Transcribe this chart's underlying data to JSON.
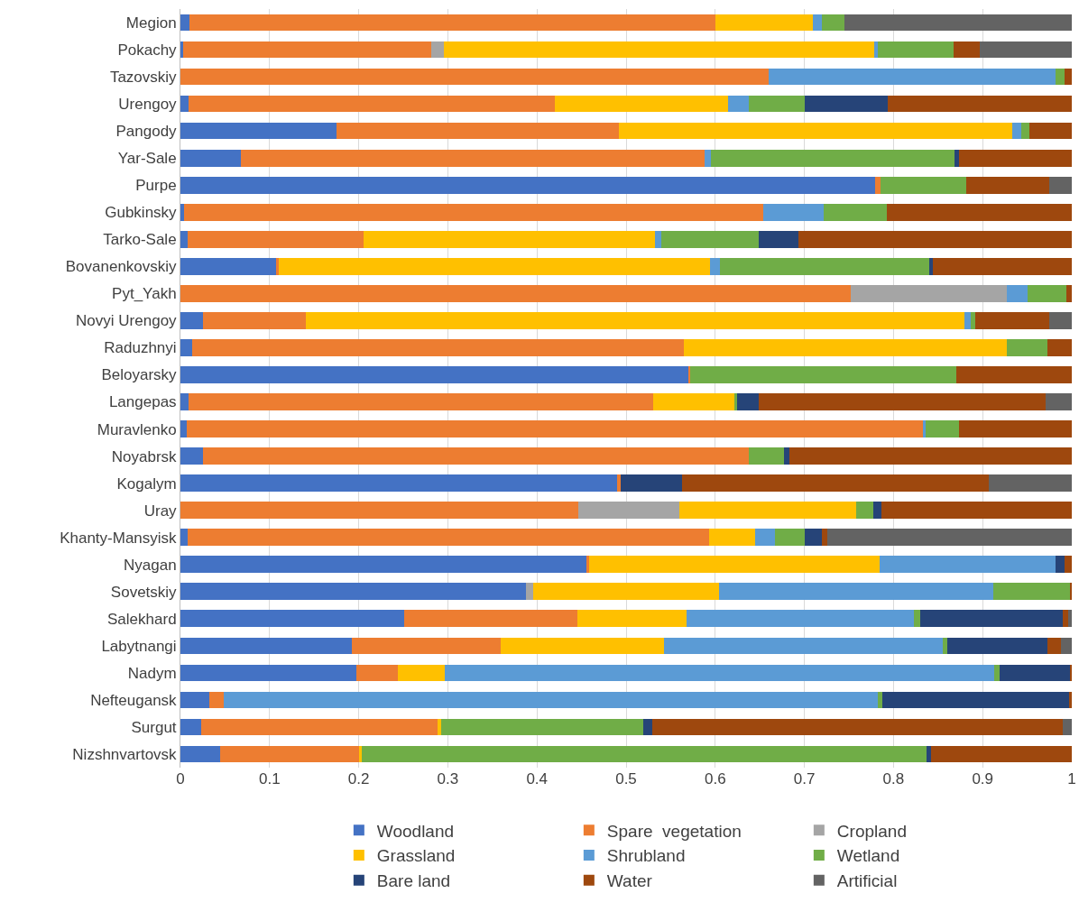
{
  "chart_data": {
    "type": "bar",
    "orientation": "horizontal",
    "stacked": true,
    "legend": "bottom",
    "grid": "x",
    "categories": [
      "Megion",
      "Pokachy",
      "Tazovskiy",
      "Urengoy",
      "Pangody",
      "Yar-Sale",
      "Purpe",
      "Gubkinsky",
      "Tarko-Sale",
      "Bovanenkovskiy",
      "Pyt_Yakh",
      "Novyi Urengoy",
      "Raduzhnyi",
      "Beloyarsky",
      "Langepas",
      "Muravlenko",
      "Noyabrsk",
      "Kogalym",
      "Uray",
      "Khanty-Mansyisk",
      "Nyagan",
      "Sovetskiy",
      "Salekhard",
      "Labytnangi",
      "Nadym",
      "Nefteugansk",
      "Surgut",
      "Nizshnvartovsk"
    ],
    "xlim": [
      0,
      1
    ],
    "xticks": [
      0,
      0.1,
      0.2,
      0.3,
      0.4,
      0.5,
      0.6,
      0.7,
      0.8,
      0.9,
      1
    ],
    "series": [
      {
        "name": "Woodland",
        "color": "#4472c4",
        "values": [
          0.01,
          0.003,
          0,
          0.009,
          0.175,
          0.068,
          0.779,
          0.004,
          0.008,
          0.107,
          0,
          0.025,
          0.013,
          0.57,
          0.009,
          0.007,
          0.025,
          0.49,
          0,
          0.008,
          0.456,
          0.388,
          0.251,
          0.192,
          0.197,
          0.032,
          0.023,
          0.045
        ]
      },
      {
        "name": "Spare  vegetation",
        "color": "#ed7d31",
        "values": [
          0.59,
          0.278,
          0.66,
          0.411,
          0.317,
          0.52,
          0.006,
          0.65,
          0.197,
          0.003,
          0.752,
          0.116,
          0.552,
          0.002,
          0.521,
          0.827,
          0.613,
          0.004,
          0.446,
          0.585,
          0.002,
          0,
          0.194,
          0.167,
          0.047,
          0.017,
          0.265,
          0.155
        ]
      },
      {
        "name": "Cropland",
        "color": "#a5a5a5",
        "values": [
          0,
          0.015,
          0,
          0,
          0,
          0,
          0,
          0,
          0,
          0,
          0.175,
          0,
          0,
          0,
          0,
          0,
          0,
          0,
          0.114,
          0,
          0,
          0.008,
          0,
          0,
          0,
          0,
          0,
          0
        ]
      },
      {
        "name": "Grassland",
        "color": "#ffc000",
        "values": [
          0.11,
          0.482,
          0,
          0.194,
          0.441,
          0,
          0,
          0,
          0.327,
          0.484,
          0,
          0.739,
          0.362,
          0,
          0.091,
          0,
          0,
          0,
          0.198,
          0.052,
          0.326,
          0.208,
          0.123,
          0.183,
          0.053,
          0,
          0.004,
          0.003
        ]
      },
      {
        "name": "Shrubland",
        "color": "#5b9bd5",
        "values": [
          0.01,
          0.004,
          0.322,
          0.024,
          0.01,
          0.007,
          0,
          0.068,
          0.007,
          0.011,
          0.023,
          0.007,
          0,
          0,
          0,
          0.002,
          0,
          0,
          0,
          0.022,
          0.198,
          0.308,
          0.255,
          0.313,
          0.616,
          0.733,
          0,
          0
        ]
      },
      {
        "name": "Wetland",
        "color": "#70ad47",
        "values": [
          0.025,
          0.085,
          0.01,
          0.062,
          0.009,
          0.273,
          0.097,
          0.07,
          0.11,
          0.235,
          0.044,
          0.005,
          0.046,
          0.298,
          0.003,
          0.037,
          0.039,
          0,
          0.019,
          0.033,
          0,
          0.086,
          0.007,
          0.005,
          0.006,
          0.005,
          0.227,
          0.634
        ]
      },
      {
        "name": "Bare land",
        "color": "#264478",
        "values": [
          0,
          0,
          0,
          0.094,
          0,
          0.005,
          0,
          0,
          0.044,
          0.004,
          0,
          0,
          0,
          0,
          0.025,
          0,
          0.006,
          0.069,
          0.009,
          0.02,
          0.01,
          0,
          0.16,
          0.113,
          0.079,
          0.21,
          0.01,
          0.005
        ]
      },
      {
        "name": "Water",
        "color": "#9e480e",
        "values": [
          0,
          0.03,
          0.008,
          0.206,
          0.048,
          0.127,
          0.093,
          0.208,
          0.307,
          0.156,
          0.006,
          0.083,
          0.027,
          0.13,
          0.322,
          0.127,
          0.317,
          0.344,
          0.214,
          0.006,
          0.008,
          0.002,
          0.006,
          0.015,
          0.002,
          0.003,
          0.461,
          0.158
        ]
      },
      {
        "name": "Artificial",
        "color": "#636363",
        "values": [
          0.255,
          0.103,
          0,
          0,
          0,
          0,
          0.025,
          0,
          0,
          0,
          0,
          0.025,
          0,
          0,
          0.029,
          0,
          0,
          0.093,
          0,
          0.274,
          0,
          0,
          0.004,
          0.012,
          0,
          0,
          0.01,
          0
        ]
      }
    ]
  }
}
